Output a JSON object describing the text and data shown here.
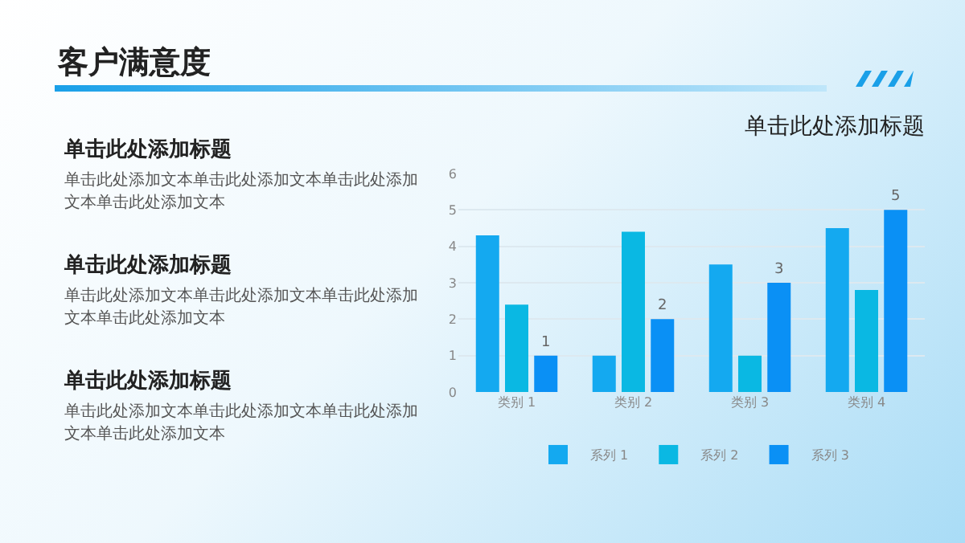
{
  "chart_data": [
    {
      "type": "other",
      "title": "客户满意度",
      "annotations": [
        "单击此处添加标题",
        "单击此处添加文本单击此处添加文本单击此处添加文本单击此处添加文本",
        "单击此处添加标题",
        "单击此处添加文本单击此处添加文本单击此处添加文本单击此处添加文本",
        "单击此处添加标题",
        "单击此处添加文本单击此处添加文本单击此处添加文本单击此处添加文本"
      ]
    },
    {
      "type": "bar",
      "title": "单击此处添加标题",
      "categories": [
        "类别 1",
        "类别 2",
        "类别 3",
        "类别 4"
      ],
      "series": [
        {
          "name": "系列 1",
          "color": "#14a9f0",
          "values": [
            4.3,
            1.0,
            3.5,
            4.5
          ]
        },
        {
          "name": "系列 2",
          "color": "#0ab8e3",
          "values": [
            2.4,
            4.4,
            1.0,
            2.8
          ]
        },
        {
          "name": "系列 3",
          "color": "#0a90f5",
          "values": [
            1,
            2,
            3,
            5
          ],
          "value_labels": [
            "1",
            "2",
            "3",
            "5"
          ]
        }
      ],
      "ylim": [
        0,
        6
      ],
      "yticks": [
        0,
        1,
        2,
        3,
        4,
        5,
        6
      ],
      "grid": "y",
      "legend": "bottom"
    }
  ]
}
